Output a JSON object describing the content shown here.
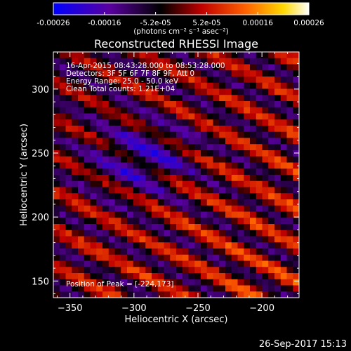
{
  "colorbar": {
    "ticks": [
      "-0.00026",
      "-0.00016",
      "-5.2e-05",
      "5.2e-05",
      "0.00016",
      "0.00026"
    ],
    "unit_label": "(photons cm⁻² s⁻¹ asec⁻²)",
    "colors": [
      "#0000ff",
      "#5a00a0",
      "#000000",
      "#c00000",
      "#ff6000",
      "#ffd800",
      "#ffffff"
    ]
  },
  "plot": {
    "title": "Reconstructed RHESSI Image",
    "info_lines": [
      "16-Apr-2015 08:43:28.000 to 08:53:28.000",
      "Detectors: 3F 5F 6F 7F 8F 9F, Att 0",
      "Energy Range: 25.0 - 50.0 keV",
      "Clean     Total counts: 1.21E+04"
    ],
    "peak_label": "Position of Peak = [-224,173]"
  },
  "footer": {
    "timestamp": "26-Sep-2017 15:13"
  },
  "chart_data": {
    "type": "heatmap",
    "title": "Reconstructed RHESSI Image",
    "xlabel": "Heliocentric X (arcsec)",
    "ylabel": "Heliocentric Y (arcsec)",
    "xlim": [
      -363,
      -171
    ],
    "ylim": [
      137,
      329
    ],
    "x_ticks": [
      -350,
      -300,
      -250,
      -200
    ],
    "y_ticks": [
      150,
      200,
      250,
      300
    ],
    "x_tick_labels": [
      "−350",
      "−300",
      "−250",
      "−200"
    ],
    "y_tick_labels": [
      "150",
      "200",
      "250",
      "300"
    ],
    "value_range": [
      -0.00026,
      0.00026
    ],
    "grid": false,
    "peak": {
      "x": -224,
      "y": 173
    }
  }
}
